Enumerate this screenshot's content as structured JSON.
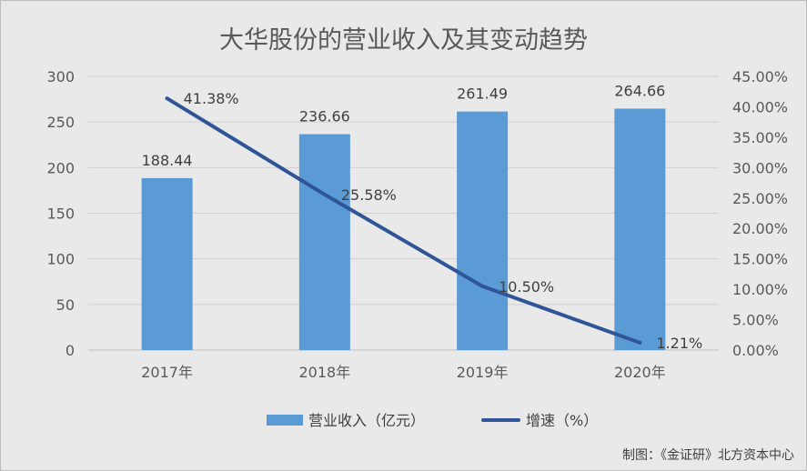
{
  "chart_data": {
    "type": "bar+line",
    "title": "大华股份的营业收入及其变动趋势",
    "categories": [
      "2017年",
      "2018年",
      "2019年",
      "2020年"
    ],
    "series": [
      {
        "name": "营业收入（亿元）",
        "type": "bar",
        "axis": "left",
        "values": [
          188.44,
          236.66,
          261.49,
          264.66
        ],
        "labels": [
          "188.44",
          "236.66",
          "261.49",
          "264.66"
        ],
        "color": "#5b9bd5"
      },
      {
        "name": "增速（%）",
        "type": "line",
        "axis": "right",
        "values": [
          41.38,
          25.58,
          10.5,
          1.21
        ],
        "labels": [
          "41.38%",
          "25.58%",
          "10.50%",
          "1.21%"
        ],
        "color": "#2f5597"
      }
    ],
    "y_left": {
      "lim": [
        0,
        300
      ],
      "ticks": [
        "0",
        "50",
        "100",
        "150",
        "200",
        "250",
        "300"
      ]
    },
    "y_right": {
      "lim": [
        0,
        45
      ],
      "ticks": [
        "0.00%",
        "5.00%",
        "10.00%",
        "15.00%",
        "20.00%",
        "25.00%",
        "30.00%",
        "35.00%",
        "40.00%",
        "45.00%"
      ]
    },
    "legend_position": "bottom",
    "grid": true
  },
  "source": "制图：《金证研》北方资本中心"
}
